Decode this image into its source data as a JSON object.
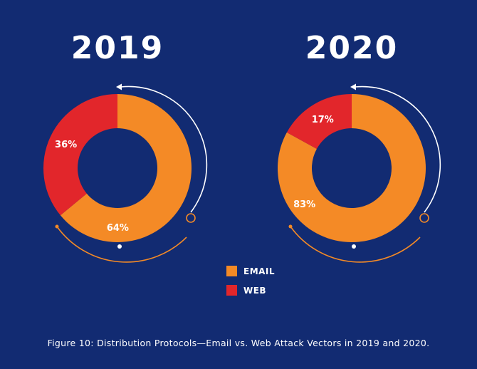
{
  "colors": {
    "background": "#122b72",
    "email": "#f48a26",
    "web": "#e2262b",
    "accent_white": "#ffffff",
    "accent_orange": "#f48a26"
  },
  "chart_data": [
    {
      "type": "pie",
      "title": "2019",
      "slices": [
        {
          "name": "EMAIL",
          "value": 64,
          "label": "64%"
        },
        {
          "name": "WEB",
          "value": 36,
          "label": "36%"
        }
      ]
    },
    {
      "type": "pie",
      "title": "2020",
      "slices": [
        {
          "name": "EMAIL",
          "value": 83,
          "label": "83%"
        },
        {
          "name": "WEB",
          "value": 17,
          "label": "17%"
        }
      ]
    }
  ],
  "legend": [
    {
      "label": "EMAIL",
      "color": "#f48a26"
    },
    {
      "label": "WEB",
      "color": "#e2262b"
    }
  ],
  "caption": "Figure 10: Distribution Protocols—Email vs. Web Attack Vectors in 2019 and 2020."
}
